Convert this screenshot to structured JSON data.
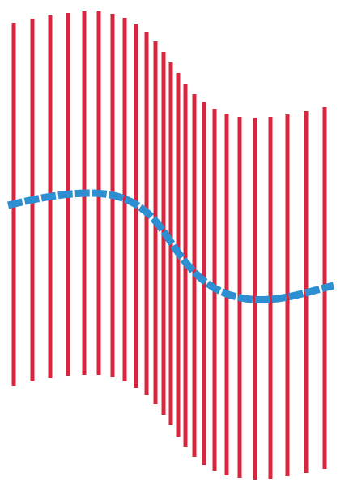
{
  "colors": {
    "background": "#ffffff",
    "vertical_lines": "#d7263d",
    "wave_curve": "#2d8fd1"
  },
  "diagram": {
    "type": "wavy-vertical-lines-with-curve",
    "line_count": 24,
    "curve_style": "dashed-thick"
  }
}
